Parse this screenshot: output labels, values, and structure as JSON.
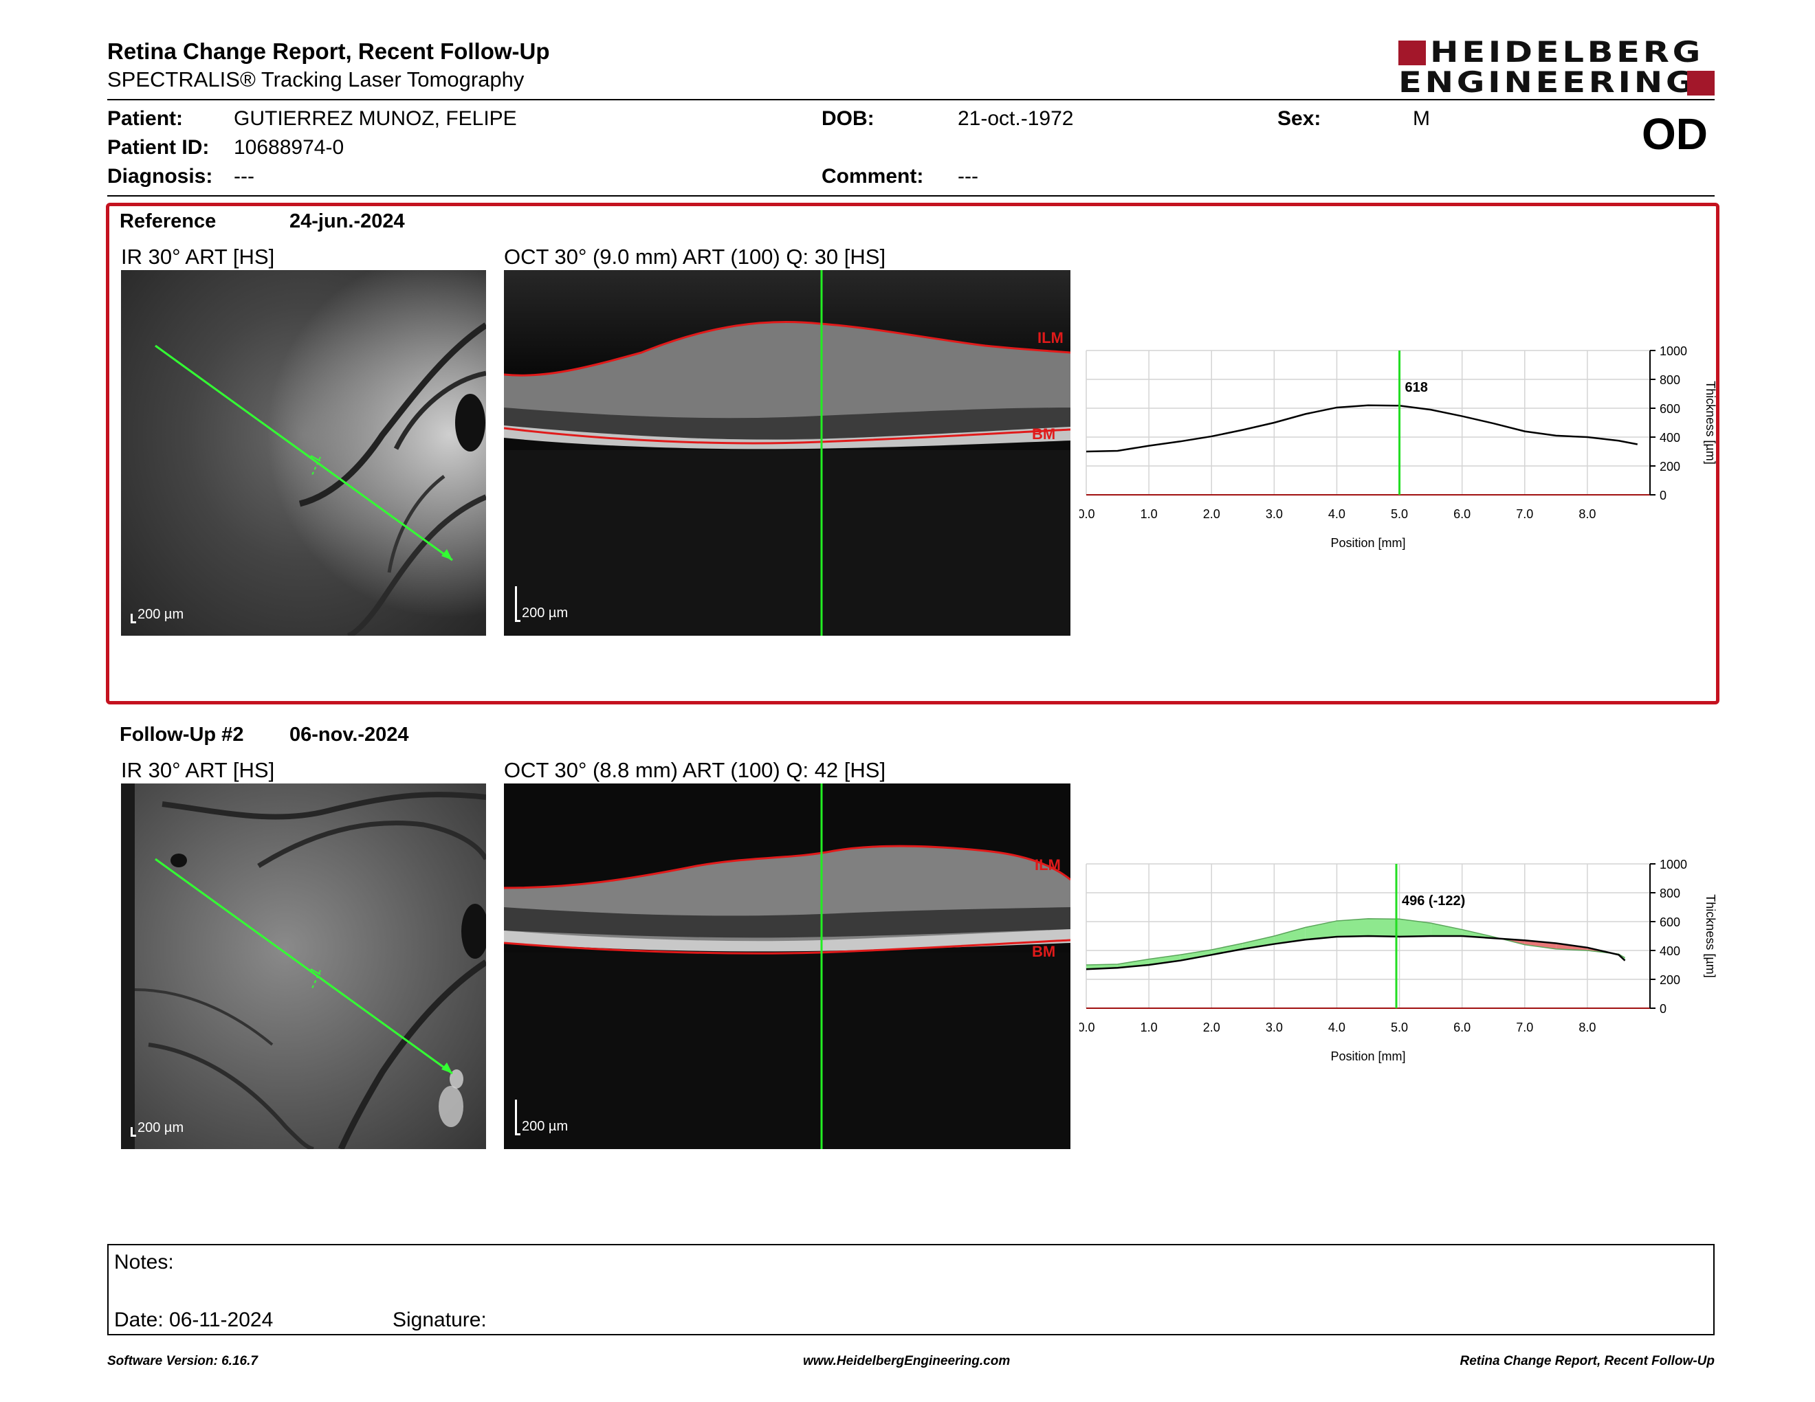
{
  "header": {
    "title": "Retina Change Report, Recent Follow-Up",
    "subtitle": "SPECTRALIS® Tracking Laser Tomography",
    "logo_line1": "HEIDELBERG",
    "logo_line2": "ENGINEERING",
    "brand_color": "#a3172a"
  },
  "patient": {
    "patient_label": "Patient:",
    "patient_value": "GUTIERREZ MUNOZ, FELIPE",
    "id_label": "Patient ID:",
    "id_value": "10688974-0",
    "diagnosis_label": "Diagnosis:",
    "diagnosis_value": "---",
    "dob_label": "DOB:",
    "dob_value": "21-oct.-1972",
    "comment_label": "Comment:",
    "comment_value": "---",
    "sex_label": "Sex:",
    "sex_value": "M",
    "eye": "OD"
  },
  "reference": {
    "label": "Reference",
    "date": "24-jun.-2024",
    "ir_title": "IR 30° ART [HS]",
    "oct_title": "OCT 30° (9.0 mm) ART (100) Q: 30 [HS]",
    "scale": "200 µm",
    "ilm": "ILM",
    "bm": "BM",
    "frame_color": "#c4121f"
  },
  "followup": {
    "label": "Follow-Up #2",
    "date": "06-nov.-2024",
    "ir_title": "IR 30° ART [HS]",
    "oct_title": "OCT 30° (8.8 mm) ART (100) Q: 42 [HS]",
    "scale": "200 µm",
    "ilm": "ILM",
    "bm": "BM"
  },
  "chart_data": [
    {
      "type": "line",
      "xlabel": "Position [mm]",
      "ylabel": "Thickness [µm]",
      "xlim": [
        0,
        9.0
      ],
      "ylim": [
        0,
        1000
      ],
      "xticks": [
        "0.0",
        "1.0",
        "2.0",
        "3.0",
        "4.0",
        "5.0",
        "6.0",
        "7.0",
        "8.0"
      ],
      "yticks": [
        "0",
        "200",
        "400",
        "600",
        "800",
        "1000"
      ],
      "grid": true,
      "cursor_x": 5.0,
      "cursor_label": "618",
      "series": [
        {
          "x": [
            0.0,
            0.5,
            1.0,
            1.5,
            2.0,
            2.5,
            3.0,
            3.5,
            4.0,
            4.5,
            5.0,
            5.5,
            6.0,
            6.5,
            7.0,
            7.5,
            8.0,
            8.5,
            8.8
          ],
          "values": [
            300,
            305,
            340,
            370,
            405,
            450,
            500,
            560,
            605,
            620,
            618,
            590,
            545,
            495,
            440,
            410,
            400,
            375,
            350
          ]
        }
      ],
      "line_color": "#000000",
      "cursor_color": "#22dd22"
    },
    {
      "type": "area",
      "xlabel": "Position [mm]",
      "ylabel": "Thickness [µm]",
      "xlim": [
        0,
        9.0
      ],
      "ylim": [
        0,
        1000
      ],
      "xticks": [
        "0.0",
        "1.0",
        "2.0",
        "3.0",
        "4.0",
        "5.0",
        "6.0",
        "7.0",
        "8.0"
      ],
      "yticks": [
        "0",
        "200",
        "400",
        "600",
        "800",
        "1000"
      ],
      "grid": true,
      "cursor_x": 4.95,
      "cursor_label": "496 (-122)",
      "series": [
        {
          "x": [
            0.0,
            0.5,
            1.0,
            1.5,
            2.0,
            2.5,
            3.0,
            3.5,
            4.0,
            4.5,
            5.0,
            5.5,
            6.0,
            6.5,
            7.0,
            7.5,
            8.0,
            8.5,
            8.6
          ],
          "values": [
            270,
            280,
            300,
            330,
            370,
            410,
            445,
            475,
            495,
            500,
            496,
            500,
            500,
            485,
            470,
            450,
            420,
            370,
            330
          ]
        },
        {
          "x": [
            0.0,
            0.5,
            1.0,
            1.5,
            2.0,
            2.5,
            3.0,
            3.5,
            4.0,
            4.5,
            5.0,
            5.5,
            6.0,
            6.5,
            7.0,
            7.5,
            8.0,
            8.5,
            8.6
          ],
          "values": [
            300,
            305,
            340,
            370,
            405,
            450,
            500,
            560,
            605,
            620,
            618,
            590,
            545,
            495,
            440,
            410,
            400,
            375,
            350
          ]
        }
      ],
      "increase_color": "#e87878",
      "decrease_color": "#8ee88e",
      "cursor_color": "#22dd22"
    }
  ],
  "notes": {
    "notes_label": "Notes:",
    "date_label": "Date: 06-11-2024",
    "signature_label": "Signature:"
  },
  "footer": {
    "left": "Software Version: 6.16.7",
    "center": "www.HeidelbergEngineering.com",
    "right": "Retina Change Report, Recent Follow-Up"
  }
}
